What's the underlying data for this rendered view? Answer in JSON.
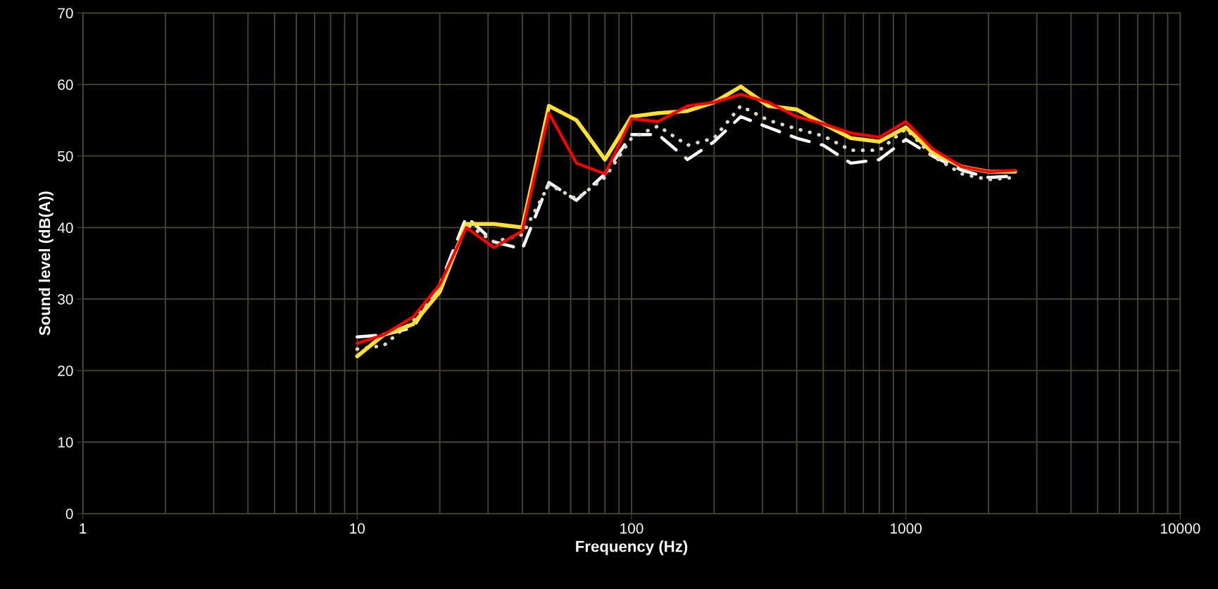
{
  "chart_data": {
    "type": "line",
    "xlabel": "Frequency (Hz)",
    "ylabel": "Sound level (dB(A))",
    "log": "x",
    "x": [
      10,
      12.5,
      16,
      20,
      25,
      31.5,
      40,
      50,
      63,
      80,
      100,
      125,
      160,
      200,
      250,
      315,
      400,
      500,
      630,
      800,
      1000,
      1250,
      1600,
      2000,
      2500
    ],
    "series": [
      {
        "color": "#ffffff",
        "line_style": "dashed",
        "values": [
          24.7,
          25,
          26,
          32,
          41.5,
          38,
          37,
          46.3,
          43.8,
          47.5,
          53,
          53,
          49.5,
          52,
          55.5,
          54,
          52.5,
          51.5,
          49,
          49.5,
          52.3,
          50,
          48,
          47,
          47.2
        ]
      },
      {
        "color": "#ddd8c8",
        "line_style": "dotted",
        "values": [
          23,
          23.5,
          27,
          31.5,
          40.5,
          38,
          39,
          46,
          44,
          47,
          52.5,
          54.2,
          51.5,
          52.5,
          57,
          55,
          53.8,
          52.8,
          50.8,
          50.8,
          53.8,
          50,
          47.5,
          46.7,
          47
        ]
      },
      {
        "color": "#ffe033",
        "line_style": "solid",
        "values": [
          22,
          25,
          26.5,
          31,
          40.5,
          40.5,
          40,
          57,
          55,
          49.5,
          55.5,
          56,
          56.3,
          57.5,
          59.7,
          57,
          56.5,
          54.5,
          52.5,
          52,
          54,
          50.5,
          48.5,
          47.8,
          47.8
        ]
      },
      {
        "color": "#ff0000",
        "line_style": "solid",
        "values": [
          23.8,
          25,
          27.5,
          32,
          40,
          37.2,
          39.5,
          56,
          49,
          47.5,
          55.2,
          54.8,
          57,
          57.5,
          58.6,
          57.5,
          55.5,
          54.5,
          53.2,
          52.6,
          54.8,
          51,
          48.5,
          47.8,
          48
        ]
      }
    ],
    "xlim": [
      1,
      10000
    ],
    "xticks": [
      1,
      10,
      100,
      1000,
      10000
    ],
    "ylim": [
      0,
      70
    ],
    "yticks": [
      0,
      10,
      20,
      30,
      40,
      50,
      60,
      70
    ],
    "grid": true
  }
}
